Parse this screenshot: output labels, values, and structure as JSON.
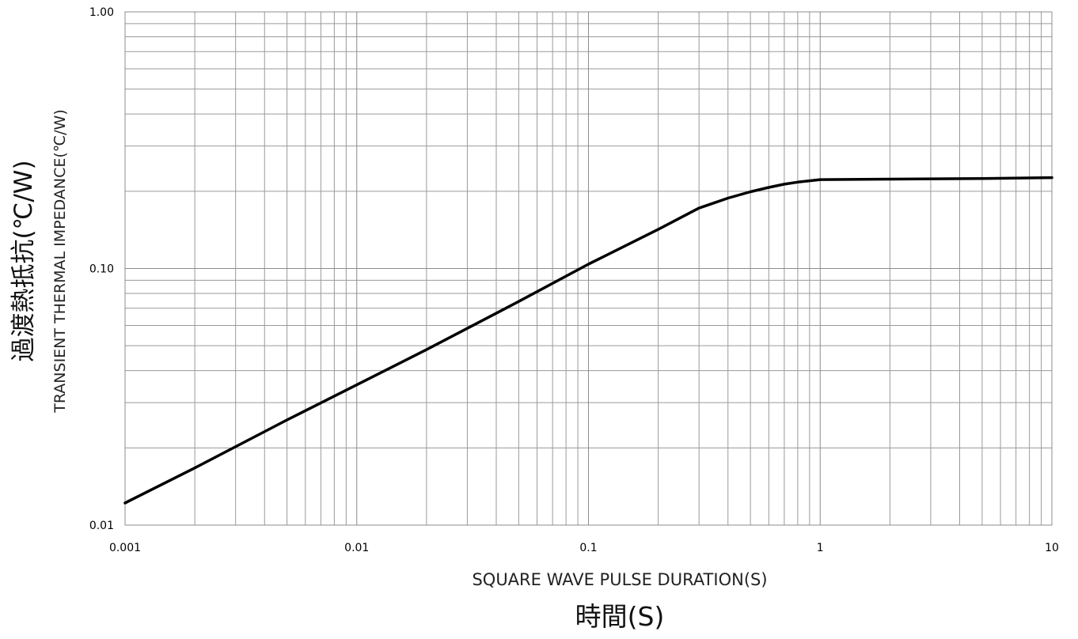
{
  "chart_data": {
    "type": "line",
    "x_scale": "log",
    "y_scale": "log",
    "xlim": [
      0.001,
      10
    ],
    "ylim": [
      0.01,
      1.0
    ],
    "grid": true,
    "x_ticks": [
      0.001,
      0.01,
      0.1,
      1,
      10
    ],
    "x_tick_labels": [
      "0.001",
      "0.01",
      "0.1",
      "1",
      "10"
    ],
    "y_ticks": [
      0.01,
      0.1,
      1.0
    ],
    "y_tick_labels": [
      "0.01",
      "0.10",
      "1.00"
    ],
    "xlabel": "SQUARE WAVE PULSE DURATION(S)",
    "xlabel_jp": "時間(S)",
    "ylabel": "TRANSIENT THERMAL IMPEDANCE(℃/W)",
    "ylabel_jp": "過渡熱抵抗(℃/W)",
    "series": [
      {
        "color": "#000000",
        "x": [
          0.001,
          0.002,
          0.005,
          0.01,
          0.02,
          0.05,
          0.1,
          0.2,
          0.3,
          0.4,
          0.5,
          0.6,
          0.7,
          0.8,
          1,
          2,
          5,
          10
        ],
        "y": [
          0.0122,
          0.0167,
          0.0257,
          0.0352,
          0.0483,
          0.0744,
          0.104,
          0.142,
          0.172,
          0.188,
          0.199,
          0.207,
          0.213,
          0.217,
          0.222,
          0.223,
          0.224,
          0.226
        ]
      }
    ]
  }
}
